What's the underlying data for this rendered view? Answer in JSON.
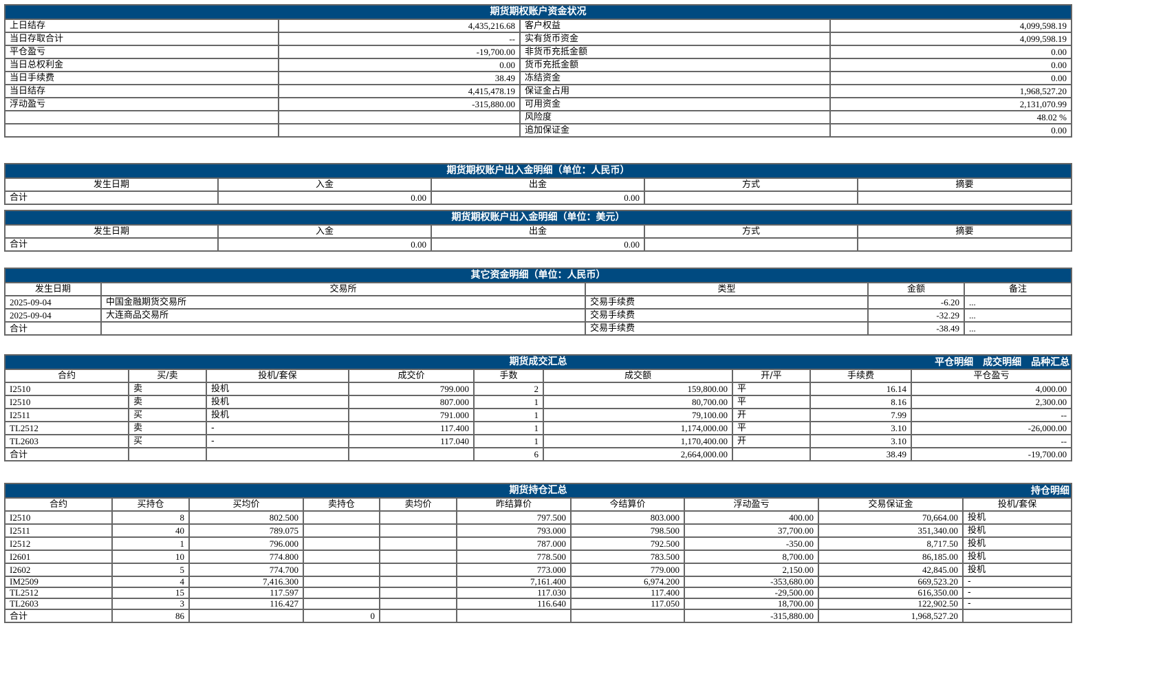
{
  "account": {
    "title": "期货期权账户资金状况",
    "rows": [
      [
        "上日结存",
        "4,435,216.68",
        "客户权益",
        "4,099,598.19"
      ],
      [
        "当日存取合计",
        "--",
        "实有货币资金",
        "4,099,598.19"
      ],
      [
        "平仓盈亏",
        "-19,700.00",
        "非货币充抵金额",
        "0.00"
      ],
      [
        "当日总权利金",
        "0.00",
        "货币充抵金额",
        "0.00"
      ],
      [
        "当日手续费",
        "38.49",
        "冻结资金",
        "0.00"
      ],
      [
        "当日结存",
        "4,415,478.19",
        "保证金占用",
        "1,968,527.20"
      ],
      [
        "浮动盈亏",
        "-315,880.00",
        "可用资金",
        "2,131,070.99"
      ],
      [
        "",
        "",
        "风险度",
        "48.02 %"
      ],
      [
        "",
        "",
        "追加保证金",
        "0.00"
      ]
    ]
  },
  "cny_flow": {
    "title": "期货期权账户出入金明细（单位：人民币）",
    "headers": [
      "发生日期",
      "入金",
      "出金",
      "方式",
      "摘要"
    ],
    "rows": [
      [
        "合计",
        "0.00",
        "0.00",
        "",
        ""
      ]
    ]
  },
  "usd_flow": {
    "title": "期货期权账户出入金明细（单位：美元）",
    "headers": [
      "发生日期",
      "入金",
      "出金",
      "方式",
      "摘要"
    ],
    "rows": [
      [
        "合计",
        "0.00",
        "0.00",
        "",
        ""
      ]
    ]
  },
  "other_funds": {
    "title": "其它资金明细（单位：人民币）",
    "headers": [
      "发生日期",
      "交易所",
      "类型",
      "金额",
      "备注"
    ],
    "rows": [
      [
        "2025-09-04",
        "中国金融期货交易所",
        "交易手续费",
        "-6.20",
        "..."
      ],
      [
        "2025-09-04",
        "大连商品交易所",
        "交易手续费",
        "-32.29",
        "..."
      ],
      [
        "合计",
        "",
        "交易手续费",
        "-38.49",
        "..."
      ]
    ]
  },
  "trades": {
    "title": "期货成交汇总",
    "links": [
      "平仓明细",
      "成交明细",
      "品种汇总"
    ],
    "headers": [
      "合约",
      "买/卖",
      "投机/套保",
      "成交价",
      "手数",
      "成交额",
      "开/平",
      "手续费",
      "平仓盈亏"
    ],
    "rows": [
      [
        "I2510",
        "卖",
        "投机",
        "799.000",
        "2",
        "159,800.00",
        "平",
        "16.14",
        "4,000.00"
      ],
      [
        "I2510",
        "卖",
        "投机",
        "807.000",
        "1",
        "80,700.00",
        "平",
        "8.16",
        "2,300.00"
      ],
      [
        "I2511",
        "买",
        "投机",
        "791.000",
        "1",
        "79,100.00",
        "开",
        "7.99",
        "--"
      ],
      [
        "TL2512",
        "卖",
        "-",
        "117.400",
        "1",
        "1,174,000.00",
        "平",
        "3.10",
        "-26,000.00"
      ],
      [
        "TL2603",
        "买",
        "-",
        "117.040",
        "1",
        "1,170,400.00",
        "开",
        "3.10",
        "--"
      ],
      [
        "合计",
        "",
        "",
        "",
        "6",
        "2,664,000.00",
        "",
        "38.49",
        "-19,700.00"
      ]
    ]
  },
  "positions": {
    "title": "期货持仓汇总",
    "links": [
      "持仓明细"
    ],
    "headers": [
      "合约",
      "买持仓",
      "买均价",
      "卖持仓",
      "卖均价",
      "昨结算价",
      "今结算价",
      "浮动盈亏",
      "交易保证金",
      "投机/套保"
    ],
    "rows": [
      [
        "I2510",
        "8",
        "802.500",
        "",
        "",
        "797.500",
        "803.000",
        "400.00",
        "70,664.00",
        "投机"
      ],
      [
        "I2511",
        "40",
        "789.075",
        "",
        "",
        "793.000",
        "798.500",
        "37,700.00",
        "351,340.00",
        "投机"
      ],
      [
        "I2512",
        "1",
        "796.000",
        "",
        "",
        "787.000",
        "792.500",
        "-350.00",
        "8,717.50",
        "投机"
      ],
      [
        "I2601",
        "10",
        "774.800",
        "",
        "",
        "778.500",
        "783.500",
        "8,700.00",
        "86,185.00",
        "投机"
      ],
      [
        "I2602",
        "5",
        "774.700",
        "",
        "",
        "773.000",
        "779.000",
        "2,150.00",
        "42,845.00",
        "投机"
      ],
      [
        "IM2509",
        "4",
        "7,416.300",
        "",
        "",
        "7,161.400",
        "6,974.200",
        "-353,680.00",
        "669,523.20",
        "-"
      ],
      [
        "TL2512",
        "15",
        "117.597",
        "",
        "",
        "117.030",
        "117.400",
        "-29,500.00",
        "616,350.00",
        "-"
      ],
      [
        "TL2603",
        "3",
        "116.427",
        "",
        "",
        "116.640",
        "117.050",
        "18,700.00",
        "122,902.50",
        "-"
      ],
      [
        "合计",
        "86",
        "",
        "0",
        "",
        "",
        "",
        "-315,880.00",
        "1,968,527.20",
        ""
      ]
    ]
  }
}
